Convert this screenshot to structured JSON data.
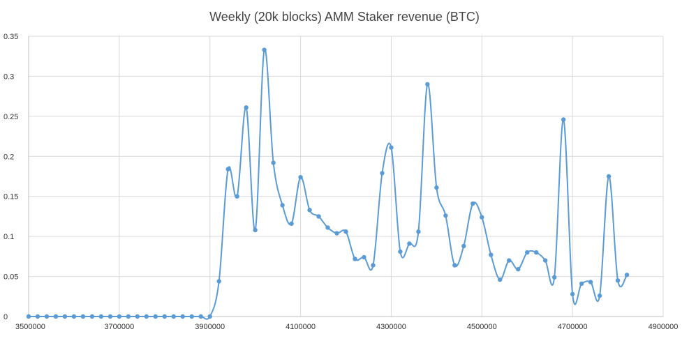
{
  "chart_data": {
    "type": "line",
    "title": "Weekly (20k blocks) AMM Staker revenue (BTC)",
    "xlabel": "",
    "ylabel": "",
    "xlim": [
      3500000,
      4900000
    ],
    "ylim": [
      0,
      0.35
    ],
    "grid": true,
    "smooth": true,
    "xticks": [
      3500000,
      3700000,
      3900000,
      4100000,
      4300000,
      4500000,
      4700000,
      4900000
    ],
    "yticks": [
      0,
      0.05,
      0.1,
      0.15,
      0.2,
      0.25,
      0.3,
      0.35
    ],
    "xtick_labels": [
      "3500000",
      "3700000",
      "3900000",
      "4100000",
      "4300000",
      "4500000",
      "4700000",
      "4900000"
    ],
    "ytick_labels": [
      "0",
      "0.05",
      "0.1",
      "0.15",
      "0.2",
      "0.25",
      "0.3",
      "0.35"
    ],
    "series": [
      {
        "name": "AMM Staker revenue",
        "color": "#5b9bd5",
        "x": [
          3500000,
          3520000,
          3540000,
          3560000,
          3580000,
          3600000,
          3620000,
          3640000,
          3660000,
          3680000,
          3700000,
          3720000,
          3740000,
          3760000,
          3780000,
          3800000,
          3820000,
          3840000,
          3860000,
          3880000,
          3900000,
          3920000,
          3940000,
          3960000,
          3980000,
          4000000,
          4020000,
          4040000,
          4060000,
          4080000,
          4100000,
          4120000,
          4140000,
          4160000,
          4180000,
          4200000,
          4220000,
          4240000,
          4260000,
          4280000,
          4300000,
          4320000,
          4340000,
          4360000,
          4380000,
          4400000,
          4420000,
          4440000,
          4460000,
          4480000,
          4500000,
          4520000,
          4540000,
          4560000,
          4580000,
          4600000,
          4620000,
          4640000,
          4660000,
          4680000,
          4700000,
          4720000,
          4740000,
          4760000,
          4780000,
          4800000,
          4820000
        ],
        "values": [
          0,
          0,
          0,
          0,
          0,
          0,
          0,
          0,
          0,
          0,
          0,
          0,
          0,
          0,
          0,
          0,
          0,
          0,
          0,
          0,
          0,
          0.044,
          0.184,
          0.15,
          0.261,
          0.108,
          0.333,
          0.192,
          0.139,
          0.116,
          0.174,
          0.133,
          0.125,
          0.111,
          0.104,
          0.106,
          0.072,
          0.074,
          0.064,
          0.179,
          0.211,
          0.081,
          0.091,
          0.106,
          0.29,
          0.161,
          0.126,
          0.064,
          0.088,
          0.141,
          0.124,
          0.077,
          0.046,
          0.07,
          0.059,
          0.08,
          0.08,
          0.07,
          0.049,
          0.246,
          0.028,
          0.041,
          0.043,
          0.026,
          0.175,
          0.045,
          0.052
        ]
      }
    ]
  }
}
